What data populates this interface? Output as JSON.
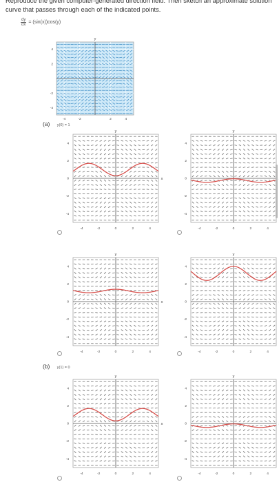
{
  "instructions": "Reproduce the given computer-generated direction field. Then sketch an approximate solution curve that passes through each of the indicated points.",
  "equation": {
    "dy": "dy",
    "dx": "dx",
    "rhs": "= (sin(x))cos(y)"
  },
  "axis_labels": {
    "x": "x",
    "y": "y"
  },
  "field_ticks": {
    "x": [
      "-4",
      "-2",
      "2",
      "4"
    ],
    "y": [
      "4",
      "2",
      "-2",
      "-4"
    ]
  },
  "option_ticks": {
    "x": [
      "-4",
      "-2",
      "0",
      "2",
      "4"
    ],
    "y": [
      "4",
      "2",
      "0",
      "-2",
      "-4"
    ]
  },
  "parts": [
    {
      "label": "(a)",
      "condition": "y(0) = 1"
    },
    {
      "label": "(b)",
      "condition": "y(1) = 0"
    }
  ],
  "colors": {
    "curve": "#d9534f",
    "field_bg": "#cfe9f8",
    "field_arrow": "#4a95c9",
    "option_arrow": "#6a6a6a"
  },
  "icons": {
    "radio": "radio-unselected-icon"
  },
  "chart_data": [
    {
      "type": "direction-field",
      "name": "given-field",
      "xlim": [
        -5,
        5
      ],
      "ylim": [
        -5,
        5
      ],
      "grid": true
    },
    {
      "type": "line",
      "part": "(a)",
      "option": 1,
      "curve": "y = 1 - 0.7*cos(x)",
      "xlim": [
        -5,
        5
      ],
      "ylim": [
        -5,
        5
      ]
    },
    {
      "type": "line",
      "part": "(a)",
      "option": 2,
      "curve": "y = -0.25 + 0.2*cos(x)",
      "xlim": [
        -5,
        5
      ],
      "ylim": [
        -5,
        5
      ]
    },
    {
      "type": "line",
      "part": "(a)",
      "option": 3,
      "curve": "y = 1.2 + 0.2*cos(x)",
      "xlim": [
        -5,
        5
      ],
      "ylim": [
        -5,
        5
      ]
    },
    {
      "type": "line",
      "part": "(a)",
      "option": 4,
      "curve": "y = 3.2 + 0.8*cos(x)",
      "xlim": [
        -5,
        5
      ],
      "ylim": [
        -5,
        5
      ]
    },
    {
      "type": "line",
      "part": "(b)",
      "option": 1,
      "curve": "y = 1 - 0.7*cos(x)",
      "xlim": [
        -5,
        5
      ],
      "ylim": [
        -5,
        5
      ]
    },
    {
      "type": "line",
      "part": "(b)",
      "option": 2,
      "curve": "y = -0.25 + 0.2*cos(x)",
      "xlim": [
        -5,
        5
      ],
      "ylim": [
        -5,
        5
      ]
    }
  ]
}
